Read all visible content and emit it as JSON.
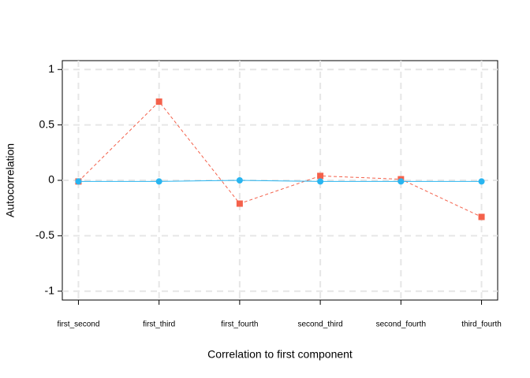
{
  "chart_data": {
    "type": "line",
    "x_label": "Correlation to first component",
    "y_label": "Autocorrelation",
    "categories": [
      "first_second",
      "first_third",
      "first_fourth",
      "second_third",
      "second_fourth",
      "third_fourth"
    ],
    "series": [
      {
        "color": "#f4614b",
        "marker": "square",
        "dashed": true,
        "values": [
          -0.01,
          0.71,
          -0.21,
          0.04,
          0.01,
          -0.33
        ]
      },
      {
        "color": "#29b5f0",
        "marker": "circle",
        "dashed": false,
        "values": [
          -0.01,
          -0.01,
          0.0,
          -0.01,
          -0.01,
          -0.01
        ]
      }
    ],
    "ylim": [
      -1.08,
      1.08
    ],
    "yticks": [
      1,
      0.5,
      0,
      -0.5,
      -1
    ],
    "grid": true
  }
}
